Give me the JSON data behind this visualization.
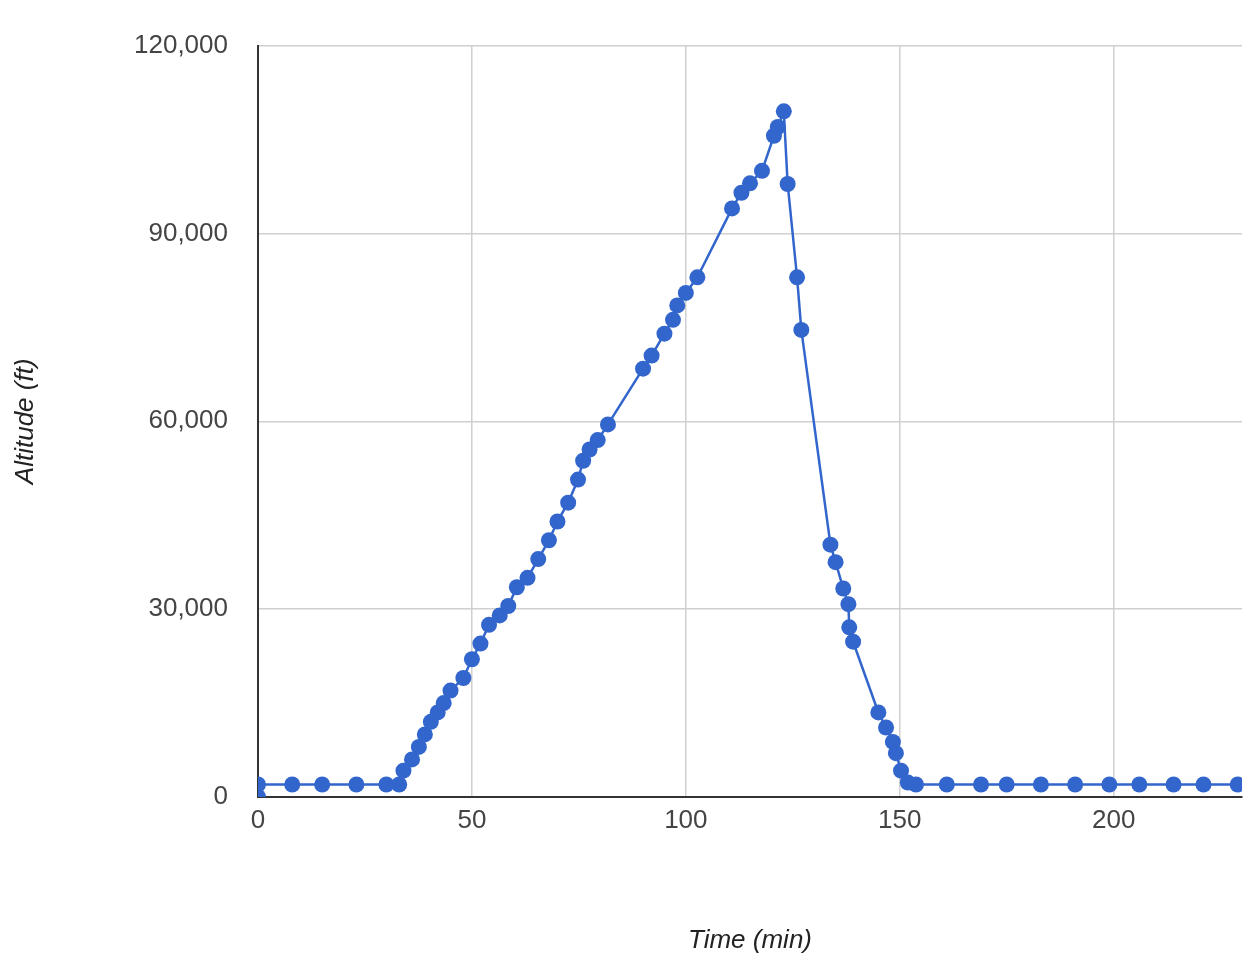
{
  "chart_data": {
    "type": "line",
    "xlabel": "Time (min)",
    "ylabel": "Altitude (ft)",
    "x": [
      0,
      0,
      8,
      15,
      23,
      30,
      33,
      34,
      36,
      37.6,
      39,
      40.4,
      42,
      43.4,
      45,
      48,
      50,
      52,
      54,
      56.5,
      58.5,
      60.5,
      63,
      65.5,
      68,
      70,
      72.5,
      74.8,
      76,
      77.5,
      79.4,
      81.8,
      90,
      92,
      95,
      97,
      98,
      100,
      102.7,
      110.8,
      113,
      115,
      117.8,
      120.6,
      121.5,
      122.9,
      123.8,
      126,
      127,
      133.8,
      135,
      136.8,
      138,
      138.2,
      139.1,
      145,
      146.8,
      148.4,
      149.1,
      150.3,
      151.9,
      153.8,
      161,
      169,
      175,
      183,
      191,
      199,
      206,
      214,
      221,
      229
    ],
    "series": [
      {
        "color": "#3366cc",
        "values": [
          0,
          2000,
          2000,
          2000,
          2000,
          2000,
          2000,
          4200,
          6000,
          8000,
          10000,
          12000,
          13500,
          15000,
          17000,
          19000,
          22000,
          24500,
          27500,
          29000,
          30500,
          33500,
          35000,
          38000,
          41000,
          44000,
          47000,
          50700,
          53700,
          55500,
          57000,
          59500,
          68400,
          70500,
          74000,
          76200,
          78500,
          80500,
          83000,
          94000,
          96500,
          98000,
          100000,
          105600,
          107000,
          109500,
          97900,
          83000,
          74600,
          40300,
          37500,
          33300,
          30800,
          27100,
          24800,
          13500,
          11100,
          8800,
          7000,
          4200,
          2300,
          2000,
          2000,
          2000,
          2000,
          2000,
          2000,
          2000,
          2000,
          2000,
          2000,
          2000
        ]
      }
    ],
    "xlim": [
      0,
      230
    ],
    "xticks": [
      0,
      50,
      100,
      150,
      200
    ],
    "ylim": [
      0,
      120000
    ],
    "yticks": [
      {
        "value": 0,
        "label": "0"
      },
      {
        "value": 30000,
        "label": "30,000"
      },
      {
        "value": 60000,
        "label": "60,000"
      },
      {
        "value": 90000,
        "label": "90,000"
      },
      {
        "value": 120000,
        "label": "120,000"
      }
    ],
    "grid": true,
    "legend": false,
    "marker": "circle",
    "line_style": "solid"
  }
}
